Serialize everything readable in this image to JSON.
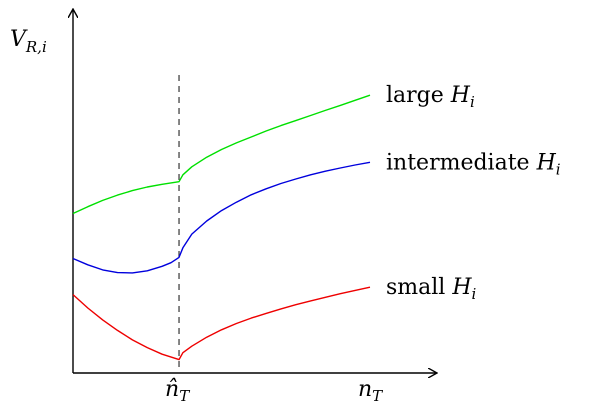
{
  "chart_data": {
    "type": "line",
    "x_axis_label": "n",
    "x_axis_label_sub": "T",
    "y_axis_label": "V",
    "y_axis_label_sub": "R,i",
    "marked_tick": "n̂",
    "marked_tick_sub": "T",
    "marker_x": 0.357,
    "xlim": [
      0,
      1
    ],
    "ylim": [
      0,
      1
    ],
    "series": [
      {
        "name_prefix": "large ",
        "name_var": "H",
        "name_sub": "i",
        "color": "#00e000",
        "x": [
          0,
          0.05,
          0.1,
          0.15,
          0.2,
          0.25,
          0.3,
          0.357,
          0.37,
          0.4,
          0.45,
          0.5,
          0.55,
          0.6,
          0.65,
          0.7,
          0.75,
          0.8,
          0.85,
          0.9,
          0.95,
          1.0
        ],
        "y": [
          0.525,
          0.548,
          0.569,
          0.587,
          0.602,
          0.614,
          0.623,
          0.632,
          0.655,
          0.682,
          0.714,
          0.74,
          0.762,
          0.782,
          0.802,
          0.82,
          0.837,
          0.854,
          0.871,
          0.888,
          0.905,
          0.922
        ]
      },
      {
        "name_prefix": "intermediate ",
        "name_var": "H",
        "name_sub": "i",
        "color": "#0000dd",
        "x": [
          0,
          0.05,
          0.1,
          0.15,
          0.2,
          0.25,
          0.3,
          0.33,
          0.357,
          0.37,
          0.4,
          0.45,
          0.5,
          0.55,
          0.6,
          0.65,
          0.7,
          0.75,
          0.8,
          0.85,
          0.9,
          0.95,
          1.0
        ],
        "y": [
          0.374,
          0.353,
          0.336,
          0.327,
          0.326,
          0.333,
          0.348,
          0.36,
          0.378,
          0.41,
          0.456,
          0.5,
          0.535,
          0.563,
          0.588,
          0.608,
          0.626,
          0.641,
          0.655,
          0.667,
          0.678,
          0.688,
          0.697
        ]
      },
      {
        "name_prefix": "small ",
        "name_var": "H",
        "name_sub": "i",
        "color": "#ee0000",
        "x": [
          0,
          0.05,
          0.1,
          0.15,
          0.2,
          0.25,
          0.3,
          0.357,
          0.37,
          0.4,
          0.45,
          0.5,
          0.55,
          0.6,
          0.65,
          0.7,
          0.75,
          0.8,
          0.85,
          0.9,
          0.95,
          1.0
        ],
        "y": [
          0.253,
          0.208,
          0.168,
          0.133,
          0.101,
          0.075,
          0.053,
          0.035,
          0.058,
          0.08,
          0.11,
          0.135,
          0.156,
          0.174,
          0.19,
          0.205,
          0.219,
          0.232,
          0.244,
          0.256,
          0.267,
          0.278
        ]
      }
    ]
  }
}
